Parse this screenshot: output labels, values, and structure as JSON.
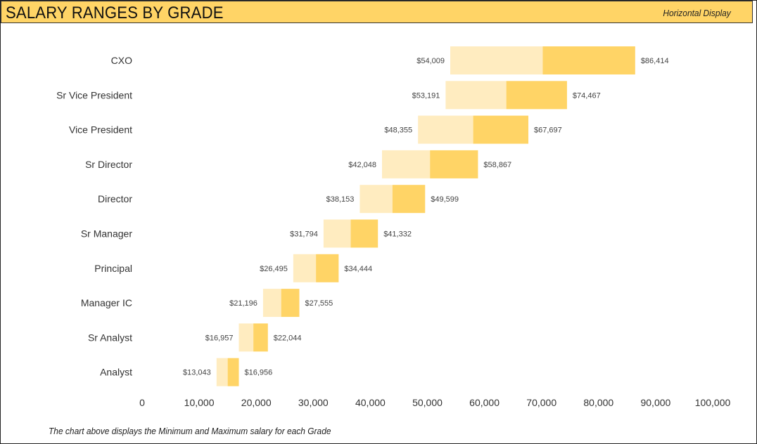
{
  "header": {
    "title": "SALARY RANGES BY GRADE",
    "subtitle": "Horizontal Display"
  },
  "footnote": "The chart above displays the Minimum and Maximum salary for each Grade",
  "colors": {
    "header_bg": "#ffd466",
    "bar_light": "#ffecc0",
    "bar_dark": "#ffd466"
  },
  "chart_data": {
    "type": "bar",
    "orientation": "horizontal",
    "stacked": true,
    "xlim": [
      0,
      100000
    ],
    "xticks": [
      0,
      10000,
      20000,
      30000,
      40000,
      50000,
      60000,
      70000,
      80000,
      90000,
      100000
    ],
    "xtick_labels": [
      "0",
      "10,000",
      "20,000",
      "30,000",
      "40,000",
      "50,000",
      "60,000",
      "70,000",
      "80,000",
      "90,000",
      "100,000"
    ],
    "grid": false,
    "categories": [
      "CXO",
      "Sr Vice President",
      "Vice President",
      "Sr Director",
      "Director",
      "Sr Manager",
      "Principal",
      "Manager IC",
      "Sr Analyst",
      "Analyst"
    ],
    "min_labels": [
      "$54,009",
      "$53,191",
      "$48,355",
      "$42,048",
      "$38,153",
      "$31,794",
      "$26,495",
      "$21,196",
      "$16,957",
      "$13,043"
    ],
    "max_labels": [
      "$86,414",
      "$74,467",
      "$67,697",
      "$58,867",
      "$49,599",
      "$41,332",
      "$34,444",
      "$27,555",
      "$22,044",
      "$16,956"
    ],
    "min": [
      54009,
      53191,
      48355,
      42048,
      38153,
      31794,
      26495,
      21196,
      16957,
      13043
    ],
    "mid": [
      70212,
      63829,
      58026,
      50458,
      43876,
      36563,
      30470,
      24376,
      19500,
      15000
    ],
    "max": [
      86414,
      74467,
      67697,
      58867,
      49599,
      41332,
      34444,
      27555,
      22044,
      16956
    ]
  }
}
